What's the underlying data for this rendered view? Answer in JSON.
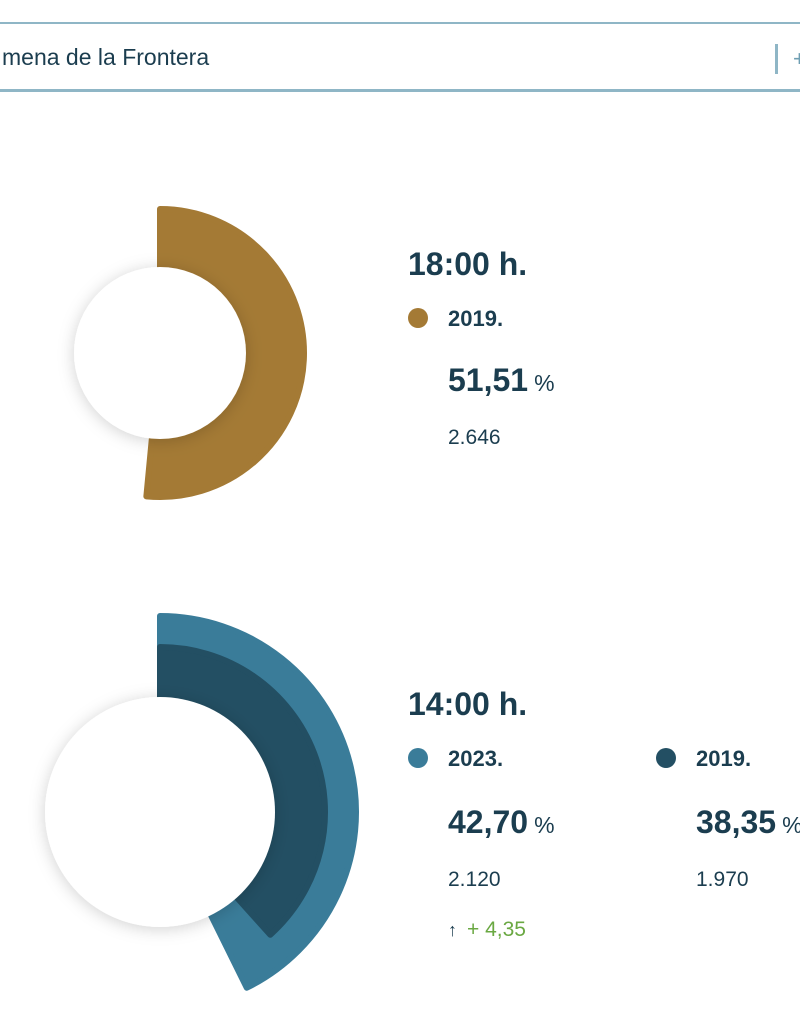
{
  "search": {
    "value": "mena de la Frontera",
    "clear_glyph": "+"
  },
  "colors": {
    "gold": "#a47a35",
    "teal": "#3a7c99",
    "navy": "#234f63",
    "text": "#1b3d4f",
    "positive": "#6aa842"
  },
  "blocks": [
    {
      "hour": "18:00 h.",
      "entries": [
        {
          "year": "2019.",
          "percent": "51,51",
          "percent_symbol": "%",
          "count": "2.646"
        }
      ]
    },
    {
      "hour": "14:00 h.",
      "entries": [
        {
          "year": "2023.",
          "percent": "42,70",
          "percent_symbol": "%",
          "count": "2.120",
          "delta_icon": "arrow-up-icon",
          "delta": "+ 4,35"
        },
        {
          "year": "2019.",
          "percent": "38,35",
          "percent_symbol": "%",
          "count": "1.970"
        }
      ]
    }
  ],
  "chart_data": [
    {
      "type": "pie",
      "title": "18:00 h.",
      "series": [
        {
          "name": "2019.",
          "values": [
            51.51
          ]
        }
      ]
    },
    {
      "type": "pie",
      "title": "14:00 h.",
      "series": [
        {
          "name": "2023.",
          "values": [
            42.7
          ]
        },
        {
          "name": "2019.",
          "values": [
            38.35
          ]
        }
      ]
    }
  ]
}
